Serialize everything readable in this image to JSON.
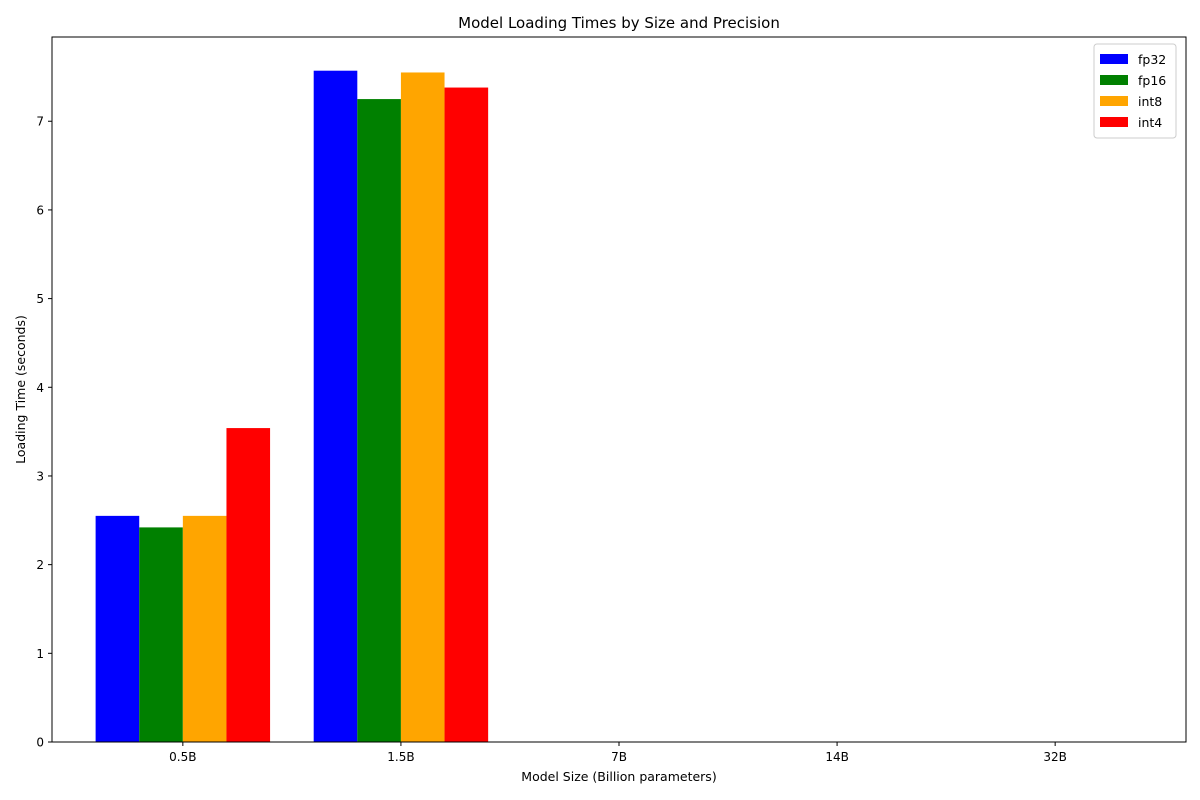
{
  "chart_data": {
    "type": "bar",
    "title": "Model Loading Times by Size and Precision",
    "xlabel": "Model Size (Billion parameters)",
    "ylabel": "Loading Time (seconds)",
    "categories": [
      "0.5B",
      "1.5B",
      "7B",
      "14B",
      "32B"
    ],
    "series": [
      {
        "name": "fp32",
        "color": "#0000ff",
        "values": [
          2.55,
          7.57,
          0,
          0,
          0
        ]
      },
      {
        "name": "fp16",
        "color": "#008000",
        "values": [
          2.42,
          7.25,
          0,
          0,
          0
        ]
      },
      {
        "name": "int8",
        "color": "#ffa500",
        "values": [
          2.55,
          7.55,
          0,
          0,
          0
        ]
      },
      {
        "name": "int4",
        "color": "#ff0000",
        "values": [
          3.54,
          7.38,
          0,
          0,
          0
        ]
      }
    ],
    "ylim": [
      0,
      7.95
    ],
    "yticks": [
      0,
      1,
      2,
      3,
      4,
      5,
      6,
      7
    ],
    "grid": false,
    "legend_position": "top-right"
  }
}
